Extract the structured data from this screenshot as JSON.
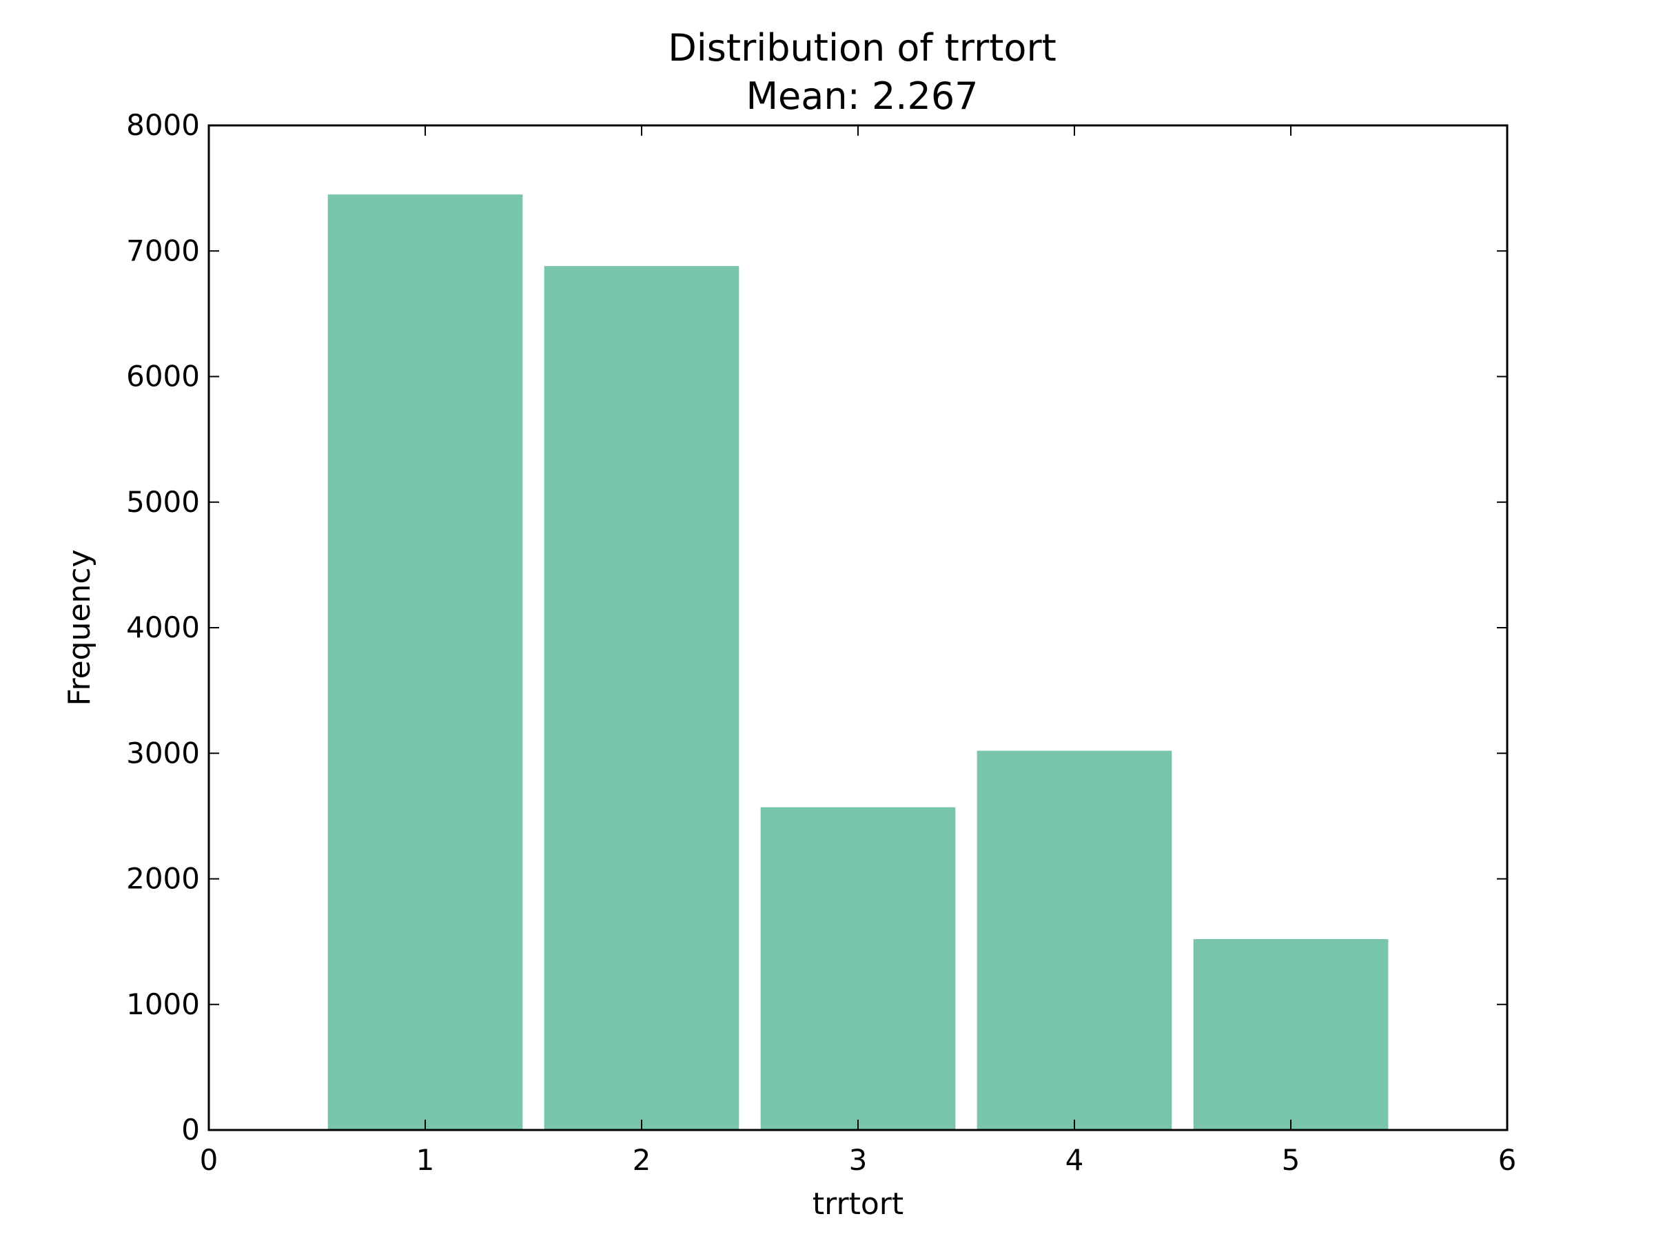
{
  "chart_data": {
    "type": "bar",
    "title": "Distribution of trrtort",
    "subtitle": "Mean: 2.267",
    "xlabel": "trrtort",
    "ylabel": "Frequency",
    "categories": [
      1,
      2,
      3,
      4,
      5
    ],
    "values": [
      7450,
      6880,
      2570,
      3020,
      1520
    ],
    "bar_width": 0.9,
    "xlim": [
      0,
      6
    ],
    "ylim": [
      0,
      8000
    ],
    "x_ticks": [
      "0",
      "1",
      "2",
      "3",
      "4",
      "5",
      "6"
    ],
    "y_ticks": [
      "0",
      "1000",
      "2000",
      "3000",
      "4000",
      "5000",
      "6000",
      "7000",
      "8000"
    ],
    "grid": false,
    "legend": false,
    "bar_color": "#78c4ad"
  }
}
